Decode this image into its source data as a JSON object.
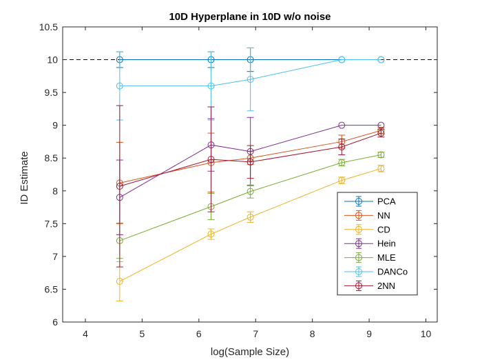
{
  "chart_data": {
    "type": "line",
    "title": "10D Hyperplane in 10D w/o noise",
    "xlabel": "log(Sample Size)",
    "ylabel": "ID Estimate",
    "xlim": [
      3.6,
      10.2
    ],
    "ylim": [
      6,
      10.5
    ],
    "xticks": [
      4,
      5,
      6,
      7,
      8,
      9,
      10
    ],
    "yticks": [
      6,
      6.5,
      7,
      7.5,
      8,
      8.5,
      9,
      9.5,
      10,
      10.5
    ],
    "xtick_labels": [
      "4",
      "5",
      "6",
      "7",
      "8",
      "9",
      "10"
    ],
    "ytick_labels": [
      "6",
      "6.5",
      "7",
      "7.5",
      "8",
      "8.5",
      "9",
      "9.5",
      "10",
      "10.5"
    ],
    "reference_line": {
      "y": 10,
      "style": "dashed",
      "color": "#000000"
    },
    "grid": false,
    "legend_position": "bottom-right",
    "series": [
      {
        "name": "PCA",
        "color": "#0072BD",
        "x": [
          4.605,
          6.215,
          6.908,
          8.517,
          9.21
        ],
        "y": [
          10,
          10,
          10,
          10,
          10
        ],
        "err": [
          0.12,
          0.12,
          0.18,
          0,
          0
        ]
      },
      {
        "name": "NN",
        "color": "#D95319",
        "x": [
          4.605,
          6.215,
          6.908,
          8.517,
          9.21
        ],
        "y": [
          8.12,
          8.43,
          8.5,
          8.75,
          8.92
        ],
        "err": [
          0.62,
          0.45,
          0.1,
          0.1,
          0.05
        ]
      },
      {
        "name": "CD",
        "color": "#EDB120",
        "x": [
          4.605,
          6.215,
          6.908,
          8.517,
          9.21
        ],
        "y": [
          6.62,
          7.34,
          7.6,
          8.16,
          8.34
        ],
        "err": [
          0.3,
          0.08,
          0.08,
          0.05,
          0.05
        ]
      },
      {
        "name": "Hein",
        "color": "#7E2F8E",
        "x": [
          4.605,
          6.215,
          6.908,
          8.517,
          9.21
        ],
        "y": [
          7.9,
          8.7,
          8.6,
          9.0,
          9.0
        ],
        "err": [
          0.57,
          0.4,
          0.52,
          0,
          0
        ]
      },
      {
        "name": "MLE",
        "color": "#77AC30",
        "x": [
          4.605,
          6.215,
          6.908,
          8.517,
          9.21
        ],
        "y": [
          7.24,
          7.76,
          7.99,
          8.43,
          8.55
        ],
        "err": [
          0.27,
          0.2,
          0.1,
          0.05,
          0.04
        ]
      },
      {
        "name": "DANCo",
        "color": "#4DBEEE",
        "x": [
          4.605,
          6.215,
          6.908,
          8.517,
          9.21
        ],
        "y": [
          9.6,
          9.6,
          9.7,
          10.0,
          10.0
        ],
        "err": [
          0.52,
          0.52,
          0.48,
          0,
          0
        ]
      },
      {
        "name": "2NN",
        "color": "#A2142F",
        "x": [
          4.605,
          6.215,
          6.908,
          8.517,
          9.21
        ],
        "y": [
          8.07,
          8.48,
          8.44,
          8.67,
          8.88
        ],
        "err": [
          1.23,
          0.8,
          0.25,
          0.12,
          0.06
        ]
      }
    ]
  }
}
